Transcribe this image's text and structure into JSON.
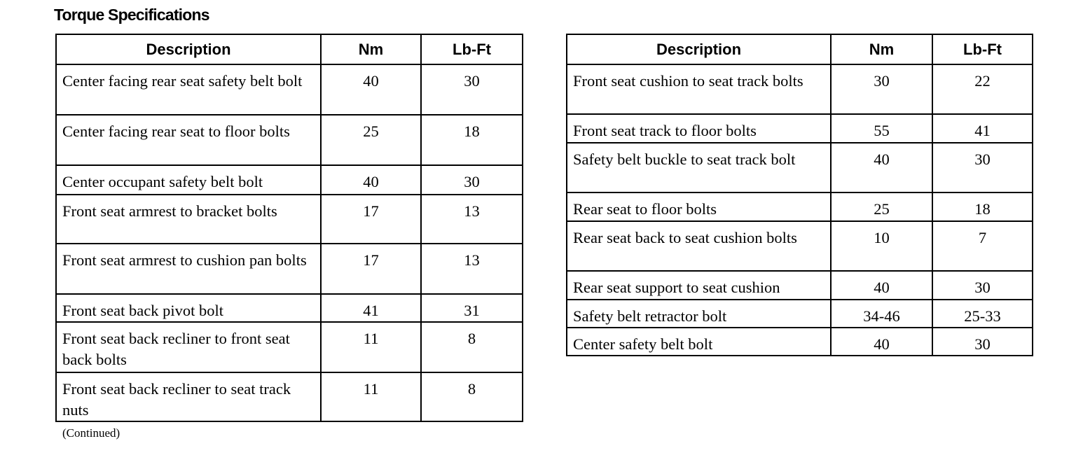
{
  "title": "Torque Specifications",
  "headers": {
    "description": "Description",
    "nm": "Nm",
    "lbft": "Lb-Ft"
  },
  "left_table": [
    {
      "description": "Center facing rear seat safety belt bolt",
      "nm": "40",
      "lbft": "30"
    },
    {
      "description": "Center facing rear seat to floor bolts",
      "nm": "25",
      "lbft": "18"
    },
    {
      "description": "Center occupant safety belt bolt",
      "nm": "40",
      "lbft": "30"
    },
    {
      "description": "Front seat armrest to bracket bolts",
      "nm": "17",
      "lbft": "13"
    },
    {
      "description": "Front seat armrest to cushion pan bolts",
      "nm": "17",
      "lbft": "13"
    },
    {
      "description": "Front seat back pivot bolt",
      "nm": "41",
      "lbft": "31"
    },
    {
      "description": "Front seat back recliner to front seat back bolts",
      "nm": "11",
      "lbft": "8"
    },
    {
      "description": "Front seat back recliner to seat track nuts",
      "nm": "11",
      "lbft": "8"
    }
  ],
  "right_table": [
    {
      "description": "Front seat cushion to seat track bolts",
      "nm": "30",
      "lbft": "22"
    },
    {
      "description": "Front seat track to floor bolts",
      "nm": "55",
      "lbft": "41"
    },
    {
      "description": "Safety belt buckle to seat track bolt",
      "nm": "40",
      "lbft": "30"
    },
    {
      "description": "Rear seat to floor bolts",
      "nm": "25",
      "lbft": "18"
    },
    {
      "description": "Rear seat back to seat cushion bolts",
      "nm": "10",
      "lbft": "7"
    },
    {
      "description": "Rear seat support to seat cushion",
      "nm": "40",
      "lbft": "30"
    },
    {
      "description": "Safety belt retractor bolt",
      "nm": "34-46",
      "lbft": "25-33"
    },
    {
      "description": "Center safety belt bolt",
      "nm": "40",
      "lbft": "30"
    }
  ],
  "continued": "(Continued)"
}
